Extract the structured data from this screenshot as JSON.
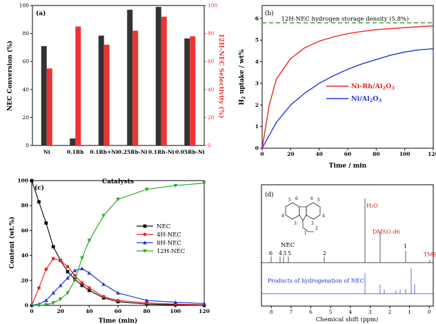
{
  "charts": [
    {
      "panel": "(a)",
      "type": "bar",
      "categories": [
        "Ni",
        "0.1Rh",
        "0.1Rh+Ni",
        "0.25Rh-Ni",
        "0.1Rh-Ni",
        "0.05Rh-Ni"
      ],
      "series": [
        {
          "name": "NEC Conversion",
          "color": "#333333",
          "values": [
            71,
            5,
            78.5,
            97,
            99,
            76.5
          ]
        },
        {
          "name": "12H-NEC Selectivity",
          "color": "#ee3333",
          "values": [
            55,
            85,
            72,
            82,
            92,
            78
          ]
        }
      ],
      "xlabel": "Catalysts",
      "ylabel_left": "NEC Conversion (%)",
      "ylabel_right": "12H-NEC Selectivity (%)",
      "ylim": [
        0,
        100
      ],
      "yticks": [
        0,
        20,
        40,
        60,
        80,
        100
      ]
    },
    {
      "panel": "(b)",
      "type": "line",
      "annotation": "12H-NEC hydrogen storage density (5.8%)",
      "reference_line": {
        "y": 5.8,
        "color": "#229922"
      },
      "series": [
        {
          "name": "Ni-Rh/Al2O3",
          "label_main": "Ni-Rh/Al",
          "sub1": "2",
          "mid": "O",
          "sub2": "3",
          "color": "#ee2222",
          "x": [
            0,
            5,
            10,
            20,
            30,
            40,
            50,
            60,
            70,
            80,
            90,
            100,
            110,
            120
          ],
          "y": [
            0,
            2.0,
            3.2,
            4.15,
            4.65,
            4.95,
            5.15,
            5.3,
            5.4,
            5.48,
            5.53,
            5.58,
            5.62,
            5.66
          ]
        },
        {
          "name": "Ni/Al2O3",
          "label_main": "Ni/Al",
          "sub1": "2",
          "mid": "O",
          "sub2": "3",
          "color": "#2233dd",
          "x": [
            0,
            5,
            10,
            20,
            30,
            40,
            50,
            60,
            70,
            80,
            90,
            100,
            110,
            120
          ],
          "y": [
            0,
            0.6,
            1.2,
            2.0,
            2.55,
            3.0,
            3.35,
            3.65,
            3.9,
            4.1,
            4.3,
            4.45,
            4.55,
            4.6
          ]
        }
      ],
      "xlabel": "Time / min",
      "ylabel": "H",
      "ylabel_sub": "2",
      "ylabel_rest": " uptake / wt%",
      "xlim": [
        0,
        120
      ],
      "ylim": [
        0,
        6.6
      ],
      "xticks": [
        0,
        20,
        40,
        60,
        80,
        100,
        120
      ],
      "yticks": [
        0,
        1,
        2,
        3,
        4,
        5,
        6
      ]
    },
    {
      "panel": "(c)",
      "type": "line",
      "series": [
        {
          "name": "NEC",
          "color": "#111111",
          "marker": "square",
          "x": [
            0,
            5,
            10,
            15,
            20,
            25,
            30,
            35,
            40,
            50,
            60,
            80,
            100,
            120
          ],
          "y": [
            100,
            83,
            66,
            47,
            36,
            27,
            21,
            16,
            12,
            6,
            3,
            1,
            0.5,
            0
          ]
        },
        {
          "name": "4H-NEC",
          "color": "#ee2222",
          "marker": "circle",
          "x": [
            0,
            5,
            10,
            15,
            20,
            25,
            30,
            35,
            40,
            50,
            60,
            80,
            100,
            120
          ],
          "y": [
            0,
            14,
            29,
            37.5,
            36,
            31,
            24,
            18,
            14,
            7,
            4,
            2,
            1,
            0.5
          ]
        },
        {
          "name": "8H-NEC",
          "color": "#2233dd",
          "marker": "triangle-up",
          "x": [
            0,
            5,
            10,
            15,
            20,
            25,
            30,
            35,
            40,
            50,
            60,
            80,
            100,
            120
          ],
          "y": [
            0,
            1,
            4,
            10,
            16,
            22,
            28,
            29.5,
            26,
            17,
            10,
            4,
            2.5,
            1.5
          ]
        },
        {
          "name": "12H-NEC",
          "color": "#22aa22",
          "marker": "triangle-down",
          "x": [
            0,
            5,
            10,
            15,
            20,
            25,
            30,
            35,
            40,
            50,
            60,
            80,
            100,
            120
          ],
          "y": [
            0,
            0,
            0.5,
            2,
            5,
            10,
            20,
            38,
            52,
            72,
            85,
            93,
            96,
            98
          ]
        }
      ],
      "xlabel": "Time (min)",
      "ylabel": "Content (wt.%)",
      "xlim": [
        0,
        120
      ],
      "ylim": [
        0,
        100
      ],
      "xticks": [
        0,
        20,
        40,
        60,
        80,
        100,
        120
      ],
      "yticks": [
        0,
        20,
        40,
        60,
        80,
        100
      ]
    },
    {
      "panel": "(d)",
      "type": "nmr-spectrum",
      "xlabel": "Chemical shift (ppm)",
      "xlim": [
        8.5,
        -0.2
      ],
      "xticks": [
        8,
        7,
        6,
        5,
        4,
        3,
        2,
        1,
        0
      ],
      "nec_label": "NEC",
      "nec_peak_labels": [
        "6",
        "4",
        "3",
        "5",
        "2",
        "1"
      ],
      "solvent_labels": {
        "water": "H₂O",
        "dmso": "DMSO-d6",
        "tms": "TMS"
      },
      "products_label": "Products of hydrogenation of NEC",
      "structure_numbers": [
        "5",
        "6",
        "6",
        "5",
        "4",
        "4",
        "3",
        "3",
        "1",
        "2"
      ]
    }
  ]
}
